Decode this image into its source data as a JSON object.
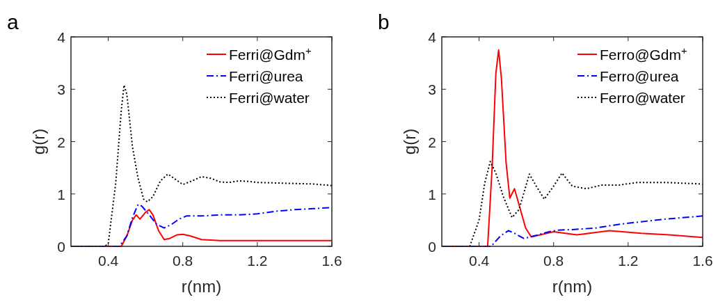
{
  "chart_data": [
    {
      "type": "line",
      "title": "a",
      "xlabel": "r(nm)",
      "ylabel": "g(r)",
      "xlim": [
        0.2,
        1.6
      ],
      "ylim": [
        0,
        4
      ],
      "xticks": [
        0.4,
        0.8,
        1.2,
        1.6
      ],
      "yticks": [
        0,
        1,
        2,
        3,
        4
      ],
      "grid": false,
      "legend": "top right",
      "series": [
        {
          "name": "Ferri@Gdm$^{+}$",
          "color": "#ff0000",
          "line_style": "solid",
          "x": [
            0.2,
            0.47,
            0.5,
            0.53,
            0.55,
            0.57,
            0.6,
            0.62,
            0.64,
            0.67,
            0.7,
            0.73,
            0.77,
            0.8,
            0.84,
            0.9,
            1.0,
            1.2,
            1.4,
            1.6
          ],
          "values": [
            0,
            0,
            0.2,
            0.5,
            0.6,
            0.52,
            0.65,
            0.7,
            0.6,
            0.3,
            0.13,
            0.15,
            0.22,
            0.23,
            0.2,
            0.13,
            0.11,
            0.11,
            0.11,
            0.11
          ]
        },
        {
          "name": "Ferri@urea",
          "color": "#0000ff",
          "line_style": "dashdot",
          "x": [
            0.2,
            0.46,
            0.5,
            0.53,
            0.56,
            0.58,
            0.62,
            0.66,
            0.7,
            0.74,
            0.78,
            0.82,
            0.9,
            1.0,
            1.1,
            1.2,
            1.3,
            1.4,
            1.5,
            1.6
          ],
          "values": [
            0,
            0,
            0.2,
            0.55,
            0.8,
            0.77,
            0.6,
            0.42,
            0.35,
            0.42,
            0.52,
            0.58,
            0.58,
            0.6,
            0.6,
            0.62,
            0.67,
            0.7,
            0.72,
            0.74
          ]
        },
        {
          "name": "Ferri@water",
          "color": "#000000",
          "line_style": "dotted",
          "x": [
            0.2,
            0.38,
            0.4,
            0.44,
            0.47,
            0.485,
            0.5,
            0.53,
            0.56,
            0.59,
            0.61,
            0.64,
            0.68,
            0.72,
            0.76,
            0.8,
            0.85,
            0.9,
            0.95,
            1.0,
            1.05,
            1.1,
            1.15,
            1.2,
            1.3,
            1.4,
            1.5,
            1.6
          ],
          "values": [
            0,
            0,
            0.05,
            1.2,
            2.6,
            3.08,
            2.9,
            1.9,
            1.3,
            0.9,
            0.85,
            0.95,
            1.25,
            1.38,
            1.28,
            1.18,
            1.25,
            1.33,
            1.3,
            1.23,
            1.22,
            1.25,
            1.24,
            1.22,
            1.21,
            1.2,
            1.19,
            1.16
          ]
        }
      ]
    },
    {
      "type": "line",
      "title": "b",
      "xlabel": "r(nm)",
      "ylabel": "g(r)",
      "xlim": [
        0.2,
        1.6
      ],
      "ylim": [
        0,
        4
      ],
      "xticks": [
        0.4,
        0.8,
        1.2,
        1.6
      ],
      "yticks": [
        0,
        1,
        2,
        3,
        4
      ],
      "grid": false,
      "legend": "top right",
      "series": [
        {
          "name": "Ferro@Gdm$^{+}$",
          "color": "#ff0000",
          "line_style": "solid",
          "x": [
            0.2,
            0.446,
            0.47,
            0.49,
            0.505,
            0.52,
            0.545,
            0.565,
            0.59,
            0.614,
            0.65,
            0.68,
            0.8,
            0.925,
            1.1,
            1.27,
            1.42,
            1.6
          ],
          "values": [
            0,
            0,
            1.5,
            3.3,
            3.75,
            3.2,
            1.6,
            0.92,
            1.1,
            0.8,
            0.35,
            0.18,
            0.28,
            0.22,
            0.3,
            0.25,
            0.22,
            0.17
          ]
        },
        {
          "name": "Ferro@urea",
          "color": "#0000ff",
          "line_style": "dashdot",
          "x": [
            0.2,
            0.465,
            0.515,
            0.558,
            0.59,
            0.64,
            0.676,
            0.776,
            0.826,
            0.9,
            1.025,
            1.15,
            1.27,
            1.4,
            1.6
          ],
          "values": [
            0,
            0,
            0.2,
            0.3,
            0.25,
            0.15,
            0.18,
            0.28,
            0.31,
            0.32,
            0.35,
            0.42,
            0.47,
            0.52,
            0.58
          ]
        },
        {
          "name": "Ferro@water",
          "color": "#000000",
          "line_style": "dotted",
          "x": [
            0.2,
            0.35,
            0.4,
            0.43,
            0.46,
            0.49,
            0.53,
            0.577,
            0.614,
            0.67,
            0.707,
            0.75,
            0.8,
            0.845,
            0.9,
            0.975,
            1.06,
            1.15,
            1.25,
            1.4,
            1.6
          ],
          "values": [
            0,
            0,
            0.5,
            1.2,
            1.62,
            1.4,
            0.95,
            0.55,
            0.7,
            1.38,
            1.15,
            0.9,
            1.15,
            1.4,
            1.15,
            1.1,
            1.17,
            1.17,
            1.22,
            1.22,
            1.19
          ]
        }
      ]
    }
  ]
}
